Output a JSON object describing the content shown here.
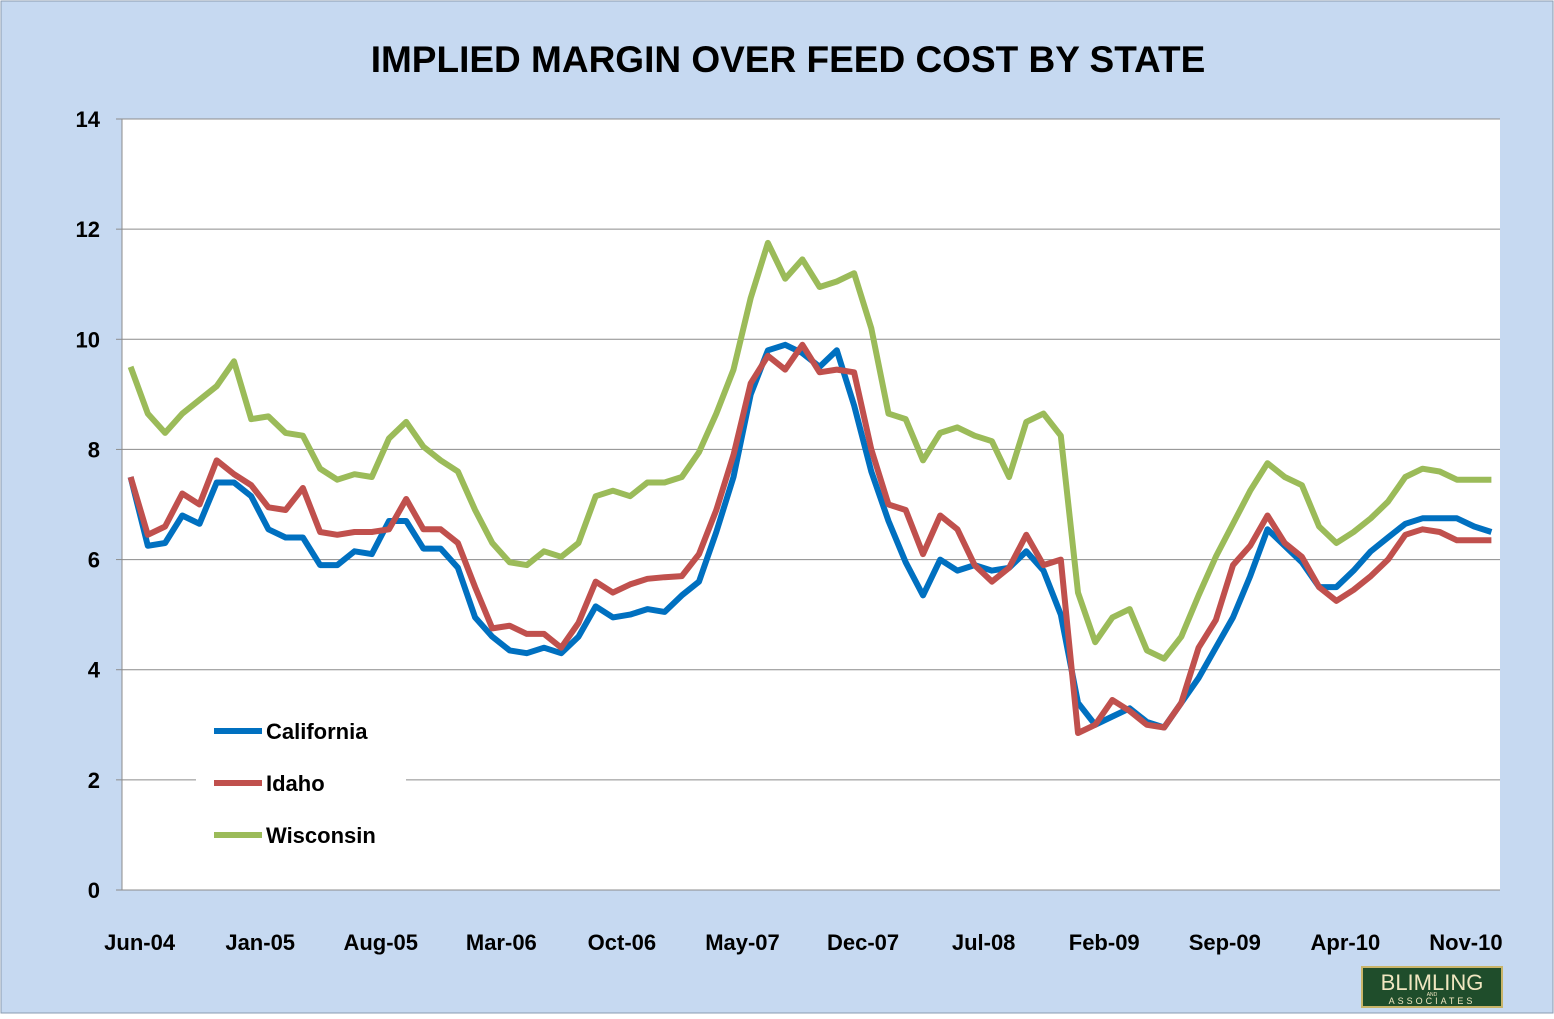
{
  "chart_data": {
    "type": "line",
    "title": "IMPLIED MARGIN OVER FEED COST BY STATE",
    "categories": [
      "Jun-04",
      null,
      null,
      null,
      null,
      null,
      null,
      "Jan-05",
      null,
      null,
      null,
      null,
      null,
      null,
      "Aug-05",
      null,
      null,
      null,
      null,
      null,
      null,
      "Mar-06",
      null,
      null,
      null,
      null,
      null,
      null,
      "Oct-06",
      null,
      null,
      null,
      null,
      null,
      null,
      "May-07",
      null,
      null,
      null,
      null,
      null,
      null,
      "Dec-07",
      null,
      null,
      null,
      null,
      null,
      null,
      "Jul-08",
      null,
      null,
      null,
      null,
      null,
      null,
      "Feb-09",
      null,
      null,
      null,
      null,
      null,
      null,
      "Sep-09",
      null,
      null,
      null,
      null,
      null,
      null,
      "Apr-10",
      null,
      null,
      null,
      null,
      null,
      null,
      "Nov-10",
      null,
      null
    ],
    "series": [
      {
        "name": "California",
        "color": "#0070c0",
        "values": [
          7.5,
          6.25,
          6.3,
          6.8,
          6.65,
          7.4,
          7.4,
          7.15,
          6.55,
          6.4,
          6.4,
          5.9,
          5.9,
          6.15,
          6.1,
          6.7,
          6.7,
          6.2,
          6.2,
          5.85,
          4.95,
          4.6,
          4.35,
          4.3,
          4.4,
          4.3,
          4.6,
          5.15,
          4.95,
          5.0,
          5.1,
          5.05,
          5.35,
          5.6,
          6.5,
          7.5,
          9.0,
          9.8,
          9.9,
          9.75,
          9.5,
          9.8,
          8.8,
          7.6,
          6.7,
          5.95,
          5.35,
          6.0,
          5.8,
          5.9,
          5.8,
          5.85,
          6.15,
          5.8,
          5.0,
          3.4,
          3.0,
          3.15,
          3.3,
          3.05,
          2.95,
          3.4,
          3.85,
          4.4,
          4.95,
          5.7,
          6.55,
          6.25,
          5.95,
          5.5,
          5.5,
          5.8,
          6.15,
          6.4,
          6.65,
          6.75,
          6.75,
          6.75,
          6.6,
          6.5
        ]
      },
      {
        "name": "Idaho",
        "color": "#c0504d",
        "values": [
          7.5,
          6.45,
          6.6,
          7.2,
          7.0,
          7.8,
          7.55,
          7.35,
          6.95,
          6.9,
          7.3,
          6.5,
          6.45,
          6.5,
          6.5,
          6.55,
          7.1,
          6.55,
          6.55,
          6.3,
          5.5,
          4.75,
          4.8,
          4.65,
          4.65,
          4.4,
          4.85,
          5.6,
          5.4,
          5.55,
          5.65,
          5.68,
          5.7,
          6.1,
          6.9,
          7.9,
          9.2,
          9.7,
          9.45,
          9.9,
          9.4,
          9.45,
          9.4,
          8.0,
          7.0,
          6.9,
          6.1,
          6.8,
          6.55,
          5.9,
          5.6,
          5.85,
          6.45,
          5.9,
          6.0,
          2.85,
          3.0,
          3.45,
          3.25,
          3.0,
          2.95,
          3.4,
          4.4,
          4.9,
          5.9,
          6.25,
          6.8,
          6.3,
          6.05,
          5.5,
          5.25,
          5.45,
          5.7,
          6.0,
          6.45,
          6.55,
          6.5,
          6.35,
          6.35,
          6.35
        ]
      },
      {
        "name": "Wisconsin",
        "color": "#9bbb59",
        "values": [
          9.5,
          8.65,
          8.3,
          8.65,
          8.9,
          9.15,
          9.6,
          8.55,
          8.6,
          8.3,
          8.25,
          7.65,
          7.45,
          7.55,
          7.5,
          8.2,
          8.5,
          8.05,
          7.8,
          7.6,
          6.9,
          6.3,
          5.95,
          5.9,
          6.15,
          6.05,
          6.3,
          7.15,
          7.25,
          7.15,
          7.4,
          7.4,
          7.5,
          7.95,
          8.65,
          9.45,
          10.75,
          11.75,
          11.1,
          11.45,
          10.95,
          11.05,
          11.2,
          10.2,
          8.65,
          8.55,
          7.8,
          8.3,
          8.4,
          8.25,
          8.15,
          7.5,
          8.5,
          8.65,
          8.25,
          5.4,
          4.5,
          4.95,
          5.1,
          4.35,
          4.2,
          4.6,
          5.35,
          6.05,
          6.65,
          7.25,
          7.75,
          7.5,
          7.35,
          6.6,
          6.3,
          6.5,
          6.75,
          7.05,
          7.5,
          7.65,
          7.6,
          7.45,
          7.45,
          7.45
        ]
      }
    ],
    "ylim": [
      0,
      14
    ],
    "yticks": [
      0,
      2,
      4,
      6,
      8,
      10,
      12,
      14
    ],
    "grid": true,
    "legend": "lower-left",
    "logo": {
      "name": "BLIMLING",
      "sub": "AND",
      "tag": "ASSOCIATES"
    }
  }
}
